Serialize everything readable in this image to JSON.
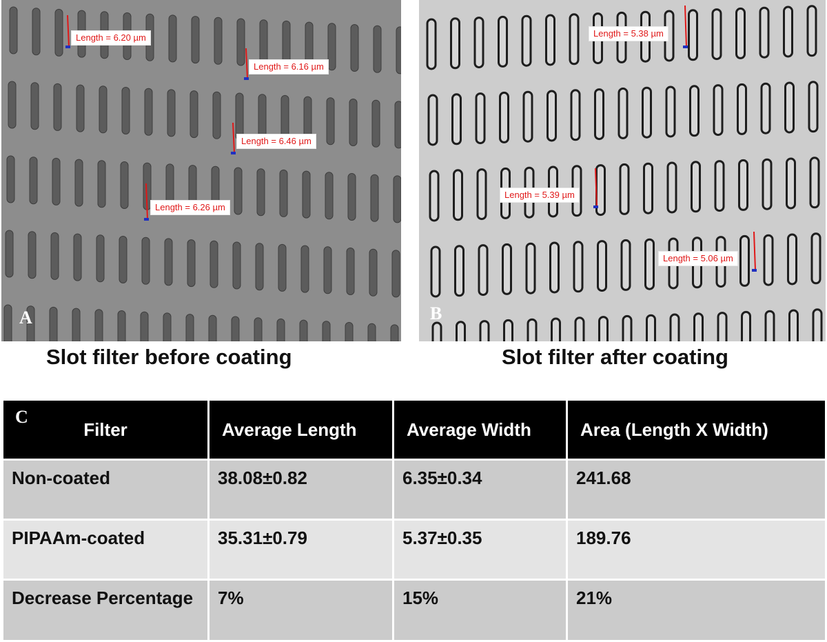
{
  "panel_a": {
    "letter": "A",
    "caption": "Slot filter before coating",
    "measurements": [
      "Length = 6.20 µm",
      "Length = 6.16 µm",
      "Length = 6.46 µm",
      "Length = 6.26 µm"
    ]
  },
  "panel_b": {
    "letter": "B",
    "caption": "Slot filter after coating",
    "measurements": [
      "Length = 5.38 µm",
      "Length = 5.39 µm",
      "Length = 5.06 µm"
    ]
  },
  "table": {
    "letter": "C",
    "headers": [
      "Filter",
      "Average Length",
      "Average Width",
      "Area (Length X Width)"
    ],
    "rows": [
      [
        "Non-coated",
        "38.08±0.82",
        "6.35±0.34",
        "241.68"
      ],
      [
        "PIPAAm-coated",
        "35.31±0.79",
        "5.37±0.35",
        "189.76"
      ],
      [
        "Decrease Percentage",
        "7%",
        "15%",
        "21%"
      ]
    ]
  },
  "colors": {
    "measure_line": "#e01818",
    "slot_a": "#5c5c5c",
    "slot_b": "#1e1e1e"
  }
}
